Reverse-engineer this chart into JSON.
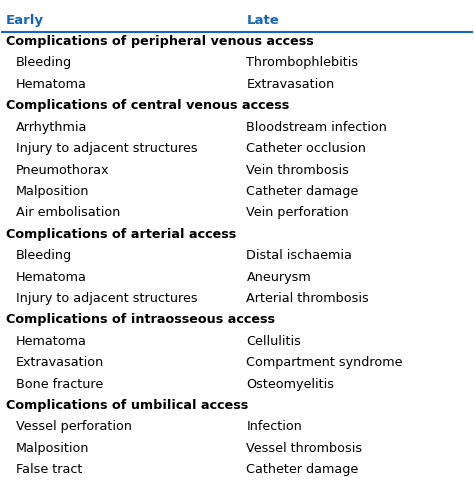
{
  "header_early": "Early",
  "header_late": "Late",
  "header_color": "#1565C0",
  "text_color": "#000000",
  "background_color": "#ffffff",
  "rows": [
    {
      "type": "section",
      "early": "Complications of peripheral venous access",
      "late": ""
    },
    {
      "type": "item",
      "early": "Bleeding",
      "late": "Thrombophlebitis"
    },
    {
      "type": "item",
      "early": "Hematoma",
      "late": "Extravasation"
    },
    {
      "type": "section",
      "early": "Complications of central venous access",
      "late": ""
    },
    {
      "type": "item",
      "early": "Arrhythmia",
      "late": "Bloodstream infection"
    },
    {
      "type": "item",
      "early": "Injury to adjacent structures",
      "late": "Catheter occlusion"
    },
    {
      "type": "item",
      "early": "Pneumothorax",
      "late": "Vein thrombosis"
    },
    {
      "type": "item",
      "early": "Malposition",
      "late": "Catheter damage"
    },
    {
      "type": "item",
      "early": "Air embolisation",
      "late": "Vein perforation"
    },
    {
      "type": "section",
      "early": "Complications of arterial access",
      "late": ""
    },
    {
      "type": "item",
      "early": "Bleeding",
      "late": "Distal ischaemia"
    },
    {
      "type": "item",
      "early": "Hematoma",
      "late": "Aneurysm"
    },
    {
      "type": "item",
      "early": "Injury to adjacent structures",
      "late": "Arterial thrombosis"
    },
    {
      "type": "section",
      "early": "Complications of intraosseous access",
      "late": ""
    },
    {
      "type": "item",
      "early": "Hematoma",
      "late": "Cellulitis"
    },
    {
      "type": "item",
      "early": "Extravasation",
      "late": "Compartment syndrome"
    },
    {
      "type": "item",
      "early": "Bone fracture",
      "late": "Osteomyelitis"
    },
    {
      "type": "section",
      "early": "Complications of umbilical access",
      "late": ""
    },
    {
      "type": "item",
      "early": "Vessel perforation",
      "late": "Infection"
    },
    {
      "type": "item",
      "early": "Malposition",
      "late": "Vessel thrombosis"
    },
    {
      "type": "item",
      "early": "False tract",
      "late": "Catheter damage"
    }
  ],
  "col_split": 0.52,
  "indent": 0.03,
  "header_fontsize": 9.5,
  "section_fontsize": 9.2,
  "item_fontsize": 9.2
}
